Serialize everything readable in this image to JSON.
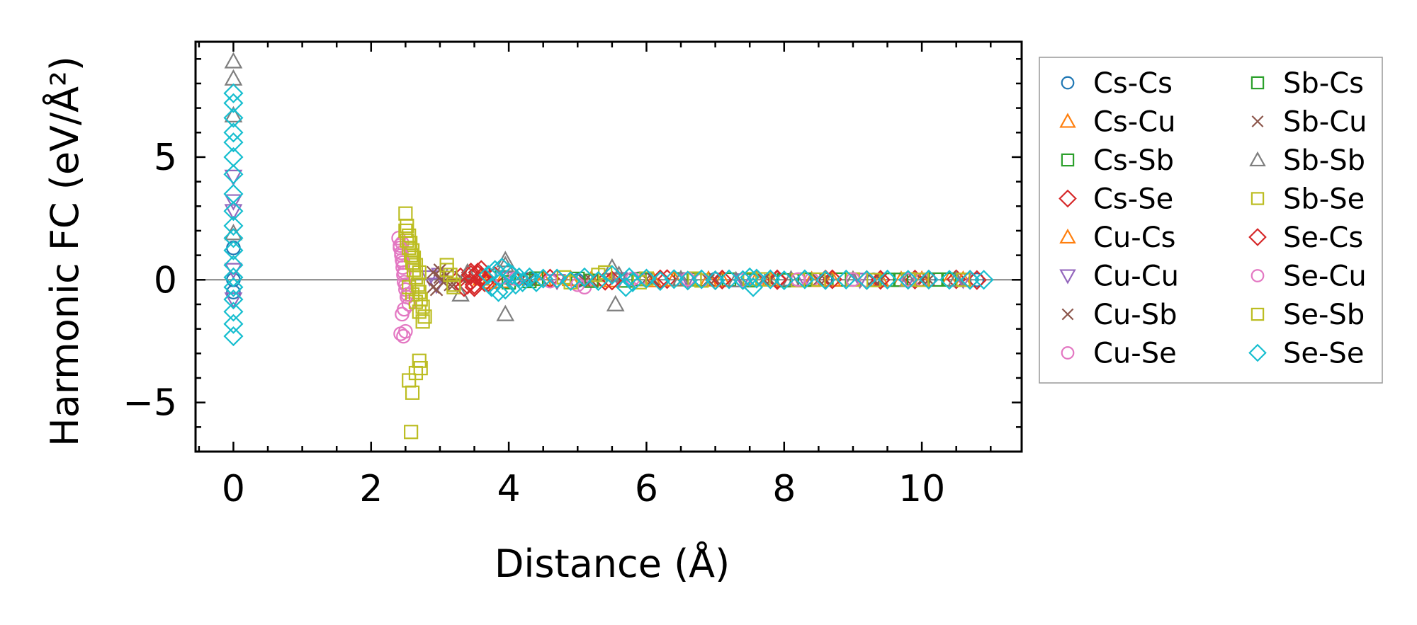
{
  "chart_data": {
    "type": "scatter",
    "title": "",
    "xlabel": "Distance (Å)",
    "ylabel": "Harmonic FC (eV/Å²)",
    "xlim": [
      -0.55,
      11.45
    ],
    "ylim": [
      -7.0,
      9.7
    ],
    "xticks": [
      0,
      2,
      4,
      6,
      8,
      10
    ],
    "yticks": [
      -5,
      0,
      5
    ],
    "xtick_labels": [
      "0",
      "2",
      "4",
      "6",
      "8",
      "10"
    ],
    "ytick_labels": [
      "−5",
      "0",
      "5"
    ],
    "grid": false,
    "zero_line": true,
    "legend_location": "outside-right",
    "series": [
      {
        "name": "Cs-Cs",
        "marker": "circle",
        "color": "#1f77b4",
        "x": [
          0,
          0,
          0,
          4.3,
          5.0,
          6.0,
          7.0,
          8.0,
          8.6,
          9.3,
          10.1,
          10.8
        ],
        "y": [
          0,
          1.3,
          -0.5,
          0.02,
          -0.03,
          0.01,
          0.02,
          -0.01,
          0.01,
          0,
          0.01,
          0
        ]
      },
      {
        "name": "Cs-Cu",
        "marker": "triangle-up",
        "color": "#ff7f0e",
        "x": [
          3.6,
          3.9,
          4.5,
          5.2,
          6.1,
          6.9,
          7.6,
          8.4,
          9.0,
          9.7,
          10.4
        ],
        "y": [
          0.05,
          -0.05,
          0.03,
          0.02,
          -0.02,
          0.01,
          0.02,
          -0.01,
          0.01,
          0,
          0.01
        ]
      },
      {
        "name": "Cs-Sb",
        "marker": "square",
        "color": "#2ca02c",
        "x": [
          3.9,
          4.3,
          5.0,
          5.7,
          6.5,
          7.2,
          8.0,
          8.8,
          9.5,
          10.2
        ],
        "y": [
          0.1,
          -0.05,
          0.04,
          -0.03,
          0.02,
          0.01,
          -0.02,
          0.01,
          0,
          0.01
        ]
      },
      {
        "name": "Cs-Se",
        "marker": "diamond",
        "color": "#d62728",
        "x": [
          3.3,
          3.4,
          3.45,
          3.5,
          3.55,
          3.6,
          3.7,
          3.8,
          4.6,
          5.4,
          6.3,
          7.0,
          7.9,
          8.6,
          9.2,
          9.9,
          10.5,
          10.8
        ],
        "y": [
          0.1,
          -0.2,
          0.3,
          -0.3,
          0.2,
          0.4,
          -0.1,
          0.15,
          0.05,
          -0.04,
          0.03,
          -0.02,
          0.02,
          0.01,
          -0.01,
          0.01,
          0.02,
          -0.01
        ]
      },
      {
        "name": "Cu-Cs",
        "marker": "triangle-up",
        "color": "#ff7f0e",
        "x": [
          3.7,
          4.1,
          4.9,
          5.5,
          6.4,
          7.1,
          7.8,
          8.7,
          9.4,
          10.0,
          10.6
        ],
        "y": [
          -0.08,
          0.06,
          0.03,
          -0.02,
          0.02,
          -0.01,
          0.01,
          0.01,
          -0.01,
          0.01,
          0
        ]
      },
      {
        "name": "Cu-Cu",
        "marker": "triangle-down",
        "color": "#9467bd",
        "x": [
          0,
          0,
          0,
          0,
          0,
          2.85,
          2.95,
          3.0,
          4.0,
          4.7,
          5.6,
          6.6,
          7.4,
          8.3,
          9.1,
          9.8,
          10.6
        ],
        "y": [
          4.2,
          3.2,
          2.8,
          -0.8,
          0.4,
          0.1,
          -0.2,
          0.2,
          0.05,
          -0.05,
          0.03,
          0.02,
          -0.02,
          0.01,
          0,
          0.01,
          0
        ]
      },
      {
        "name": "Cu-Sb",
        "marker": "x",
        "color": "#8c564b",
        "x": [
          2.9,
          2.95,
          3.0,
          3.05,
          3.1,
          3.2,
          3.3,
          4.2,
          5.1,
          6.0,
          6.9,
          7.7,
          8.5,
          9.3,
          10.0
        ],
        "y": [
          0.3,
          -0.4,
          0.1,
          -0.1,
          0.2,
          -0.2,
          0.1,
          0.05,
          -0.04,
          0.03,
          -0.02,
          0.02,
          -0.01,
          0.01,
          0
        ]
      },
      {
        "name": "Cu-Se",
        "marker": "circle",
        "color": "#e377c2",
        "x": [
          2.4,
          2.42,
          2.44,
          2.45,
          2.46,
          2.47,
          2.48,
          2.5,
          2.52,
          2.55,
          2.45,
          2.48,
          2.43,
          2.5,
          3.9,
          4.6,
          5.1,
          5.9,
          6.8,
          7.6,
          8.4,
          9.2,
          10.0
        ],
        "y": [
          1.7,
          1.4,
          1.1,
          0.8,
          0.5,
          0.2,
          -0.1,
          -0.4,
          -0.7,
          -1.0,
          1.5,
          -1.2,
          -2.2,
          -2.1,
          0.1,
          -0.05,
          -0.3,
          0.05,
          -0.03,
          0.02,
          0.01,
          -0.01,
          0.01
        ]
      },
      {
        "name": "Sb-Cs",
        "marker": "square",
        "color": "#2ca02c",
        "x": [
          4.0,
          4.4,
          5.2,
          5.9,
          6.7,
          7.5,
          8.3,
          9.0,
          9.7,
          10.4
        ],
        "y": [
          -0.1,
          0.05,
          -0.04,
          0.03,
          0.02,
          -0.02,
          0.01,
          0.01,
          0,
          0.01
        ]
      },
      {
        "name": "Sb-Cu",
        "marker": "x",
        "color": "#8c564b",
        "x": [
          2.9,
          3.0,
          3.05,
          3.1,
          3.15,
          3.3,
          4.3,
          5.2,
          6.1,
          7.0,
          7.8,
          8.6,
          9.4,
          10.1
        ],
        "y": [
          -0.3,
          0.4,
          -0.1,
          0.2,
          -0.2,
          0.1,
          0.04,
          -0.03,
          0.02,
          0.02,
          -0.01,
          0.01,
          0,
          0
        ]
      },
      {
        "name": "Sb-Sb",
        "marker": "triangle-up",
        "color": "#7f7f7f",
        "x": [
          0,
          0,
          0,
          0,
          3.3,
          3.4,
          3.95,
          3.95,
          3.95,
          5.5,
          5.55,
          5.6,
          6.5,
          7.3,
          8.1,
          9.0,
          9.8,
          10.5
        ],
        "y": [
          8.9,
          8.2,
          6.7,
          1.9,
          -0.6,
          0.3,
          -1.4,
          0.8,
          0.6,
          0.5,
          -1.0,
          0.2,
          0.03,
          -0.02,
          0.02,
          0.01,
          0,
          0
        ]
      },
      {
        "name": "Sb-Se",
        "marker": "square",
        "color": "#bcbd22",
        "x": [
          2.5,
          2.52,
          2.55,
          2.57,
          2.6,
          2.62,
          2.65,
          2.7,
          2.55,
          2.6,
          2.65,
          2.7,
          2.75,
          3.1,
          3.15,
          3.2,
          4.8,
          5.3,
          5.9,
          6.7,
          7.5,
          8.2,
          9.0,
          9.8,
          10.6
        ],
        "y": [
          2.7,
          2.2,
          1.8,
          1.5,
          1.2,
          0.9,
          0.6,
          0.3,
          -0.3,
          -0.6,
          -0.9,
          -1.3,
          -1.7,
          0.6,
          0.2,
          -0.3,
          0.1,
          0.2,
          -0.1,
          0.05,
          0.03,
          -0.02,
          0.01,
          0.02,
          0
        ]
      },
      {
        "name": "Se-Cs",
        "marker": "diamond",
        "color": "#d62728",
        "x": [
          3.35,
          3.45,
          3.5,
          3.55,
          3.6,
          3.65,
          4.7,
          5.5,
          6.2,
          7.1,
          7.9,
          8.7,
          9.4,
          10.1,
          10.7
        ],
        "y": [
          -0.3,
          0.2,
          -0.2,
          0.3,
          0.1,
          -0.1,
          0.04,
          -0.03,
          0.02,
          0.01,
          -0.01,
          0.02,
          0,
          0.01,
          0
        ]
      },
      {
        "name": "Se-Cu",
        "marker": "circle",
        "color": "#e377c2",
        "x": [
          2.42,
          2.44,
          2.46,
          2.48,
          2.5,
          2.53,
          2.45,
          2.47,
          4.1,
          5.0,
          5.8,
          6.6,
          7.4,
          8.2,
          9.0,
          9.8
        ],
        "y": [
          1.3,
          1.0,
          0.7,
          0.3,
          -0.2,
          -0.6,
          -1.4,
          -2.3,
          0.05,
          -0.2,
          0.04,
          0.03,
          -0.02,
          0.01,
          0.01,
          0
        ]
      },
      {
        "name": "Se-Sb",
        "marker": "square",
        "color": "#bcbd22",
        "x": [
          2.5,
          2.52,
          2.55,
          2.58,
          2.6,
          2.62,
          2.65,
          2.68,
          2.7,
          2.72,
          2.75,
          2.78,
          2.55,
          2.6,
          2.65,
          2.7,
          2.72,
          2.58,
          3.1,
          3.2,
          4.9,
          5.4,
          6.0,
          6.8,
          7.7,
          8.5,
          9.3,
          10.0
        ],
        "y": [
          2.0,
          1.6,
          1.3,
          1.0,
          0.7,
          0.4,
          0.1,
          -0.2,
          -0.5,
          -0.8,
          -1.1,
          -1.5,
          -4.1,
          -4.6,
          -3.8,
          -3.3,
          -3.6,
          -6.2,
          0.4,
          -0.2,
          -0.1,
          0.3,
          0.05,
          -0.03,
          0.02,
          0.01,
          -0.01,
          0
        ]
      },
      {
        "name": "Se-Se",
        "marker": "diamond",
        "color": "#17becf",
        "x": [
          0,
          0,
          0,
          0,
          0,
          0,
          0,
          0,
          0,
          0,
          0,
          0,
          0,
          0,
          0,
          0,
          0,
          0,
          0,
          3.7,
          3.75,
          3.8,
          3.85,
          3.9,
          3.95,
          4.0,
          4.05,
          4.1,
          4.15,
          4.2,
          4.3,
          4.4,
          4.5,
          4.7,
          4.9,
          5.1,
          5.3,
          5.5,
          5.7,
          5.75,
          5.8,
          6.0,
          6.2,
          6.4,
          6.6,
          6.8,
          7.0,
          7.2,
          7.4,
          7.5,
          7.55,
          7.6,
          7.8,
          8.0,
          8.3,
          8.6,
          8.9,
          9.2,
          9.5,
          9.8,
          10.1,
          10.4,
          10.7,
          10.9
        ],
        "y": [
          7.6,
          7.2,
          6.6,
          6.0,
          5.6,
          5.0,
          4.3,
          3.5,
          2.8,
          2.2,
          1.7,
          1.2,
          0.6,
          0.1,
          -0.3,
          -0.8,
          -1.3,
          -1.8,
          -2.3,
          0.2,
          -0.3,
          0.4,
          -0.5,
          0.5,
          -0.4,
          0.3,
          0.2,
          -0.2,
          0.1,
          -0.1,
          0.1,
          -0.1,
          0.05,
          0.05,
          -0.05,
          0.1,
          -0.05,
          0.2,
          -0.3,
          0.1,
          -0.1,
          0.05,
          -0.05,
          0.03,
          -0.03,
          0.02,
          -0.02,
          0.02,
          -0.01,
          0.1,
          -0.3,
          0.05,
          0.02,
          -0.02,
          0.02,
          -0.01,
          0.01,
          -0.01,
          0.01,
          0,
          0.01,
          0,
          0,
          0
        ]
      }
    ]
  }
}
